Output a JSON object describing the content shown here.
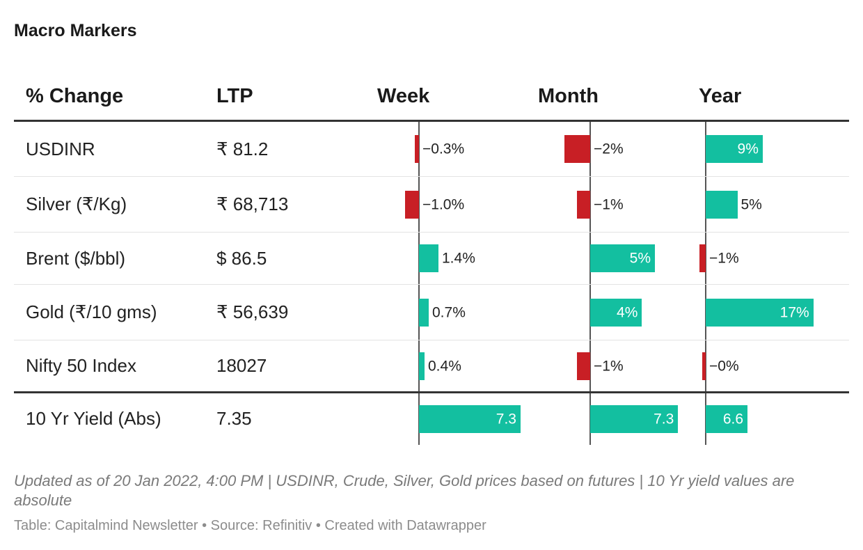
{
  "title": "Macro Markers",
  "header": {
    "name": "% Change",
    "ltp": "LTP",
    "week": "Week",
    "month": "Month",
    "year": "Year"
  },
  "rows": [
    {
      "name": "USDINR",
      "ltp": "₹ 81.2"
    },
    {
      "name": "Silver (₹/Kg)",
      "ltp": "₹ 68,713"
    },
    {
      "name": "Brent ($/bbl)",
      "ltp": "$ 86.5"
    },
    {
      "name": "Gold (₹/10 gms)",
      "ltp": "₹ 56,639"
    },
    {
      "name": "Nifty 50 Index",
      "ltp": "18027"
    },
    {
      "name": "10 Yr Yield (Abs)",
      "ltp": "7.35"
    }
  ],
  "chart_data": {
    "type": "table",
    "title": "Macro Markers",
    "columns": [
      "% Change",
      "LTP",
      "Week",
      "Month",
      "Year"
    ],
    "bar_columns": [
      "week",
      "month",
      "year"
    ],
    "series": [
      {
        "name": "USDINR",
        "week": -0.3,
        "month": -2,
        "year": 9,
        "labels": {
          "week": "−0.3%",
          "month": "−2%",
          "year": "9%"
        }
      },
      {
        "name": "Silver (₹/Kg)",
        "week": -1.0,
        "month": -1,
        "year": 5,
        "labels": {
          "week": "−1.0%",
          "month": "−1%",
          "year": "5%"
        }
      },
      {
        "name": "Brent ($/bbl)",
        "week": 1.4,
        "month": 5,
        "year": -1,
        "labels": {
          "week": "1.4%",
          "month": "5%",
          "year": "−1%"
        }
      },
      {
        "name": "Gold (₹/10 gms)",
        "week": 0.7,
        "month": 4,
        "year": 17,
        "labels": {
          "week": "0.7%",
          "month": "4%",
          "year": "17%"
        }
      },
      {
        "name": "Nifty 50 Index",
        "week": 0.4,
        "month": -1,
        "year": -0.3,
        "labels": {
          "week": "0.4%",
          "month": "−1%",
          "year": "−0%"
        }
      },
      {
        "name": "10 Yr Yield (Abs)",
        "week": 7.3,
        "month": 7.3,
        "year": 6.6,
        "labels": {
          "week": "7.3",
          "month": "7.3",
          "year": "6.6"
        }
      }
    ],
    "colors": {
      "positive": "#13bfa0",
      "negative": "#c81f25"
    }
  },
  "footnote": "Updated as of 20 Jan 2022, 4:00 PM | USDINR, Crude, Silver, Gold prices based on futures | 10 Yr yield values are absolute",
  "credit": "Table: Capitalmind Newsletter • Source: Refinitiv • Created with Datawrapper"
}
